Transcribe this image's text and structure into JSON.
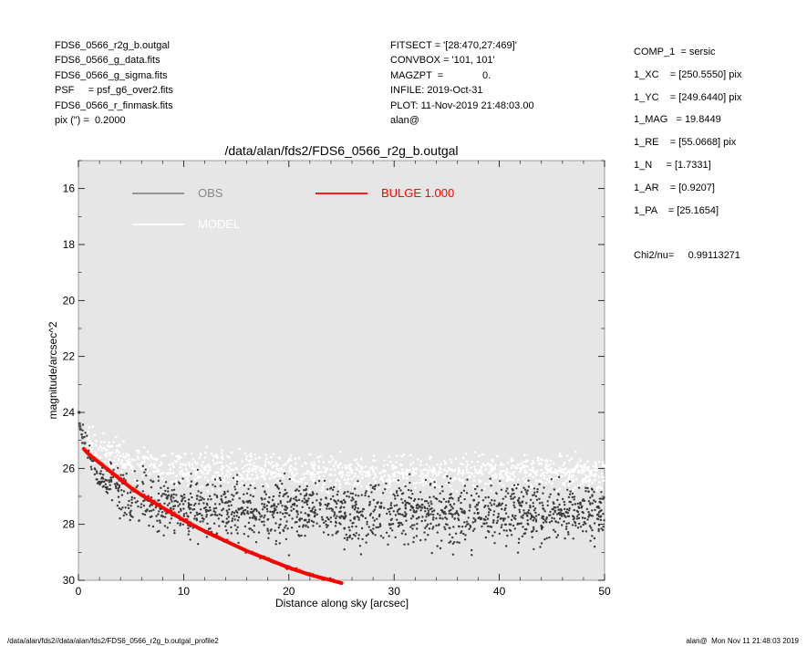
{
  "header": {
    "left_lines": [
      "FDS6_0566_r2g_b.outgal",
      "FDS6_0566_g_data.fits",
      "FDS6_0566_g_sigma.fits",
      "PSF     = psf_g6_over2.fits",
      "FDS6_0566_r_finmask.fits",
      "pix (\") =  0.2000"
    ],
    "middle_lines": [
      "FITSECT = '[28:470,27:469]'",
      "CONVBOX = '101, 101'",
      "MAGZPT  =              0.",
      "INFILE: 2019-Oct-31",
      "PLOT: 11-Nov-2019 21:48:03.00",
      "alan@"
    ]
  },
  "params": {
    "lines": [
      "COMP_1  = sersic",
      "1_XC    = [250.5550] pix",
      "1_YC    = [249.6440] pix",
      "1_MAG   = 19.8449",
      "1_RE    = [55.0668] pix",
      "1_N     = [1.7331]",
      "1_AR    = [0.9207]",
      "1_PA    = [25.1654]",
      "",
      "Chi2/nu=     0.99113271"
    ]
  },
  "footer": {
    "left": "/data/alan/fds2//data/alan/fds2/FDS6_0566_r2g_b.outgal_profile2",
    "right": "alan@  Mon Nov 11 21:48:03 2019"
  },
  "colors": {
    "plot_bg": "#e6e6e6",
    "obs": "#888888",
    "model": "#ffffff",
    "bulge": "#ff0000",
    "data_points": "#3a3a3a"
  },
  "chart_data": {
    "type": "scatter",
    "title": "/data/alan/fds2/FDS6_0566_r2g_b.outgal",
    "xlabel": "Distance along sky [arcsec]",
    "ylabel": "magnitude/arcsec^2",
    "xlim": [
      0,
      50
    ],
    "ylim": [
      30,
      15
    ],
    "y_inverted": true,
    "xticks": [
      0,
      10,
      20,
      30,
      40,
      50
    ],
    "yticks": [
      16,
      18,
      20,
      22,
      24,
      26,
      28,
      30
    ],
    "legend": [
      {
        "label": "OBS",
        "color": "#888888"
      },
      {
        "label": "BULGE  1.000",
        "color": "#ff0000"
      },
      {
        "label": "MODEL",
        "color": "#ffffff"
      }
    ],
    "series": [
      {
        "name": "BULGE  1.000",
        "x": [
          0.5,
          1,
          2,
          3,
          4,
          5,
          6,
          8,
          10,
          12,
          14,
          16,
          18,
          20,
          22,
          24,
          25
        ],
        "y": [
          25.3,
          25.5,
          25.8,
          26.1,
          26.4,
          26.7,
          26.95,
          27.4,
          27.85,
          28.25,
          28.6,
          28.95,
          29.25,
          29.55,
          29.8,
          30.0,
          30.1
        ]
      },
      {
        "name": "OBS",
        "x": [
          0.05,
          0.1,
          0.2,
          0.3,
          0.5,
          0.8,
          1,
          1.5,
          2,
          3,
          4,
          5,
          7,
          9,
          11,
          13,
          15,
          18,
          21,
          24,
          27,
          30,
          35,
          40,
          45,
          50
        ],
        "y": [
          24.0,
          24.4,
          24.6,
          24.8,
          25.0,
          25.3,
          25.5,
          26.0,
          26.3,
          26.6,
          26.8,
          27.0,
          27.2,
          27.3,
          27.4,
          27.45,
          27.5,
          27.55,
          27.55,
          27.6,
          27.6,
          27.6,
          27.6,
          27.6,
          27.6,
          27.6
        ]
      },
      {
        "name": "MODEL",
        "x": [
          1,
          5,
          10,
          15,
          20,
          25,
          30,
          35,
          40,
          45,
          50
        ],
        "y": [
          25.2,
          25.8,
          26.0,
          26.1,
          26.1,
          26.15,
          26.2,
          26.2,
          26.2,
          26.2,
          26.2
        ]
      }
    ]
  }
}
